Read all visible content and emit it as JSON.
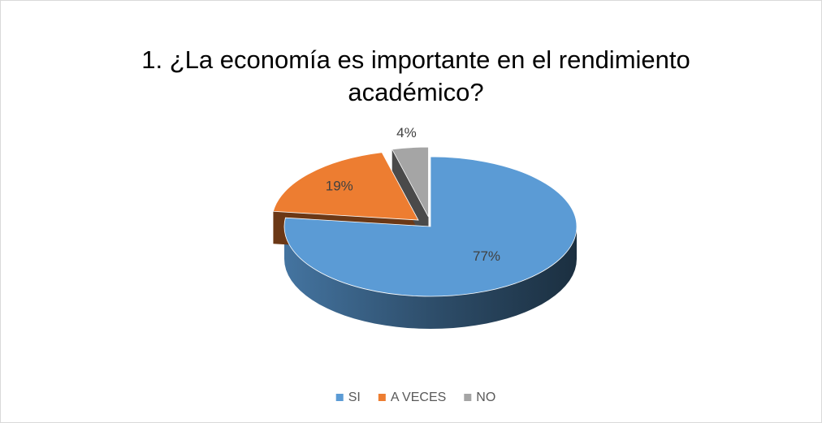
{
  "chart_data": {
    "type": "pie",
    "title": [
      "1. ¿La economía es importante en el rendimiento",
      "académico?"
    ],
    "categories": [
      "SI",
      "A VECES",
      "NO"
    ],
    "values": [
      77,
      19,
      4
    ],
    "value_labels": [
      "77%",
      "19%",
      "4%"
    ],
    "colors": [
      "#5b9bd5",
      "#ed7d31",
      "#a5a5a5"
    ],
    "legend": "bottom"
  }
}
